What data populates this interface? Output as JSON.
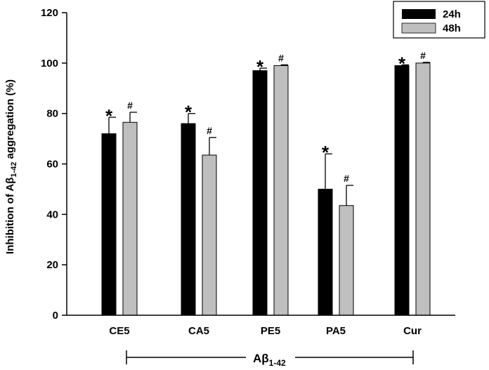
{
  "chart_data": {
    "type": "bar",
    "title": "",
    "xlabel": "",
    "ylabel": {
      "prefix": "Inhibition of Aβ",
      "sub": "1-42",
      "suffix": " aggregation (%)"
    },
    "ylim": [
      0,
      120
    ],
    "yticks": [
      "0",
      "20",
      "40",
      "60",
      "80",
      "100",
      "120"
    ],
    "categories": [
      "CE5",
      "CA5",
      "PE5",
      "PA5",
      "Cur"
    ],
    "series": [
      {
        "name": "24h",
        "color": "#000000",
        "values": [
          72,
          76,
          97,
          50,
          99
        ],
        "errors": [
          6.5,
          4,
          1,
          14,
          0.3
        ],
        "marker": "*"
      },
      {
        "name": "48h",
        "color": "#bfbfbf",
        "values": [
          76.5,
          63.5,
          99,
          43.5,
          100
        ],
        "errors": [
          4,
          7,
          0.3,
          8,
          0.3
        ],
        "marker": "#"
      }
    ],
    "legend_position": "top-right",
    "bracket_label": {
      "main": "Aβ",
      "sub": "1-42"
    }
  }
}
